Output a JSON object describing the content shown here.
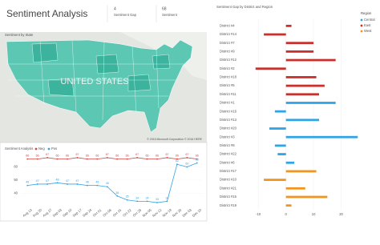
{
  "header": {
    "title": "Sentiment Analysis"
  },
  "cards": [
    {
      "value": "4",
      "label": "Sentiment Gap"
    },
    {
      "value": "68",
      "label": "Sentiment"
    }
  ],
  "map": {
    "title": "Sentiment by State",
    "label": "UNITED STATES",
    "attribution": "© 2016 Microsoft Corporation  © 2016 HERE"
  },
  "chart_data": [
    {
      "type": "line",
      "legend_title": "Sentiment Analysis",
      "categories": [
        "Aug 13",
        "Aug 20",
        "Aug 27",
        "Sep 03",
        "Sep 10",
        "Sep 17",
        "Sep 24",
        "Oct 01",
        "Oct 08",
        "Oct 15",
        "Oct 22",
        "Oct 29",
        "Nov 05",
        "Nov 12",
        "Nov 19",
        "Nov 26",
        "Dec 03",
        "Dec 10"
      ],
      "series": [
        {
          "name": "Neg",
          "color": "#d64541",
          "values": [
            66,
            66,
            67,
            66,
            66,
            67,
            66,
            66,
            67,
            66,
            66,
            67,
            66,
            66,
            67,
            66,
            67,
            66
          ]
        },
        {
          "name": "Pos",
          "color": "#2fa4e7",
          "values": [
            46,
            47,
            47,
            48,
            47,
            47,
            46,
            46,
            45,
            38,
            35,
            34,
            34,
            33,
            34,
            62,
            60,
            63
          ]
        }
      ],
      "ylim": [
        30,
        70
      ],
      "yticks": [
        40,
        50,
        60
      ],
      "grid": true
    },
    {
      "type": "hbar",
      "title": "Sentiment Gap by District and Region",
      "legend_title": "Region",
      "categories": [
        "District #4",
        "District #14",
        "District #7",
        "District #9",
        "District #12",
        "District #2",
        "District #18",
        "District #5",
        "District #11",
        "District #1",
        "District #16",
        "District #13",
        "District #20",
        "District #3",
        "District #8",
        "District #22",
        "District #6",
        "District #17",
        "District #10",
        "District #21",
        "District #15",
        "District #19"
      ],
      "series": [
        {
          "name": "Central",
          "color": "#2fa4e7",
          "values": [
            null,
            null,
            null,
            null,
            null,
            null,
            null,
            null,
            null,
            18,
            -4,
            12,
            -6,
            26,
            -4,
            -3,
            3,
            null,
            null,
            null,
            null,
            null
          ]
        },
        {
          "name": "East",
          "color": "#c9302c",
          "values": [
            2,
            -8,
            10,
            10,
            18,
            -11,
            11,
            14,
            12,
            null,
            null,
            null,
            null,
            null,
            null,
            null,
            null,
            null,
            null,
            null,
            null,
            null
          ]
        },
        {
          "name": "West",
          "color": "#f0961e",
          "values": [
            null,
            null,
            null,
            null,
            null,
            null,
            null,
            null,
            null,
            null,
            null,
            null,
            null,
            null,
            null,
            null,
            null,
            11,
            -8,
            7,
            15,
            2
          ]
        }
      ],
      "xlim": [
        -15,
        30
      ],
      "xticks": [
        -10,
        0,
        10,
        20
      ],
      "grid": true
    }
  ]
}
